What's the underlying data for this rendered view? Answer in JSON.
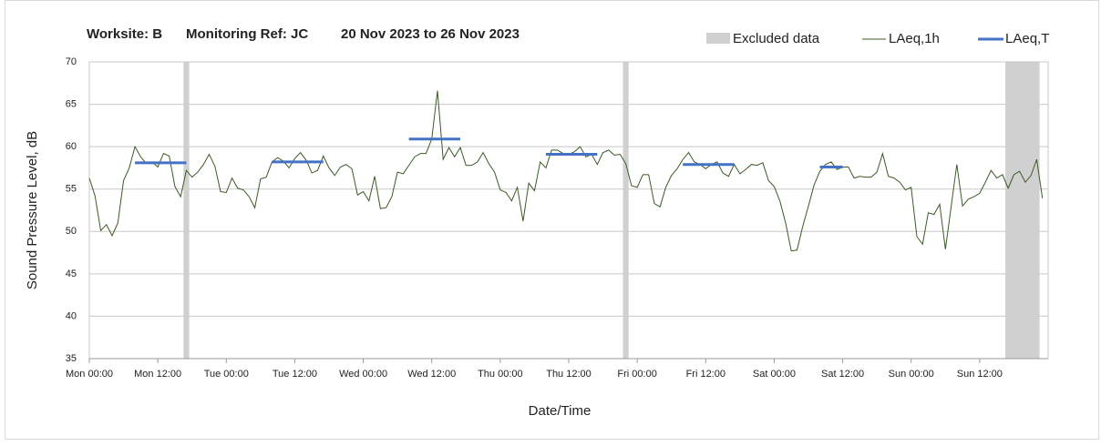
{
  "chart_data": {
    "type": "line",
    "title_parts": [
      "Worksite: B",
      "Monitoring Ref: JC",
      "20 Nov 2023 to 26 Nov 2023"
    ],
    "x_label": "Date/Time",
    "y_label": "Sound Pressure Level, dB",
    "xlim": [
      0,
      168
    ],
    "ylim": [
      35,
      70
    ],
    "yticks": [
      35,
      40,
      45,
      50,
      55,
      60,
      65,
      70
    ],
    "xticks": [
      {
        "value": 0,
        "label": "Mon 00:00"
      },
      {
        "value": 12,
        "label": "Mon 12:00"
      },
      {
        "value": 24,
        "label": "Tue 00:00"
      },
      {
        "value": 36,
        "label": "Tue 12:00"
      },
      {
        "value": 48,
        "label": "Wed 00:00"
      },
      {
        "value": 60,
        "label": "Wed 12:00"
      },
      {
        "value": 72,
        "label": "Thu 00:00"
      },
      {
        "value": 84,
        "label": "Thu 12:00"
      },
      {
        "value": 96,
        "label": "Fri 00:00"
      },
      {
        "value": 108,
        "label": "Fri 12:00"
      },
      {
        "value": 120,
        "label": "Sat 00:00"
      },
      {
        "value": 132,
        "label": "Sat 12:00"
      },
      {
        "value": 144,
        "label": "Sun 00:00"
      },
      {
        "value": 156,
        "label": "Sun 12:00"
      }
    ],
    "grid": true,
    "excluded": {
      "name": "Excluded data",
      "color": "#d0d0d0",
      "ranges": [
        [
          16.5,
          17.5
        ],
        [
          93.5,
          94.5
        ],
        [
          160.5,
          166.5
        ]
      ]
    },
    "series": [
      {
        "name": "LAeq,1h",
        "color": "#3b5a26",
        "x": [
          0,
          1,
          2,
          3,
          4,
          5,
          6,
          7,
          8,
          9,
          10,
          11,
          12,
          13,
          14,
          15,
          16,
          17,
          18,
          19,
          20,
          21,
          22,
          23,
          24,
          25,
          26,
          27,
          28,
          29,
          30,
          31,
          32,
          33,
          34,
          35,
          36,
          37,
          38,
          39,
          40,
          41,
          42,
          43,
          44,
          45,
          46,
          47,
          48,
          49,
          50,
          51,
          52,
          53,
          54,
          55,
          56,
          57,
          58,
          59,
          60,
          61,
          62,
          63,
          64,
          65,
          66,
          67,
          68,
          69,
          70,
          71,
          72,
          73,
          74,
          75,
          76,
          77,
          78,
          79,
          80,
          81,
          82,
          83,
          84,
          85,
          86,
          87,
          88,
          89,
          90,
          91,
          92,
          93,
          94,
          95,
          96,
          97,
          98,
          99,
          100,
          101,
          102,
          103,
          104,
          105,
          106,
          107,
          108,
          109,
          110,
          111,
          112,
          113,
          114,
          115,
          116,
          117,
          118,
          119,
          120,
          121,
          122,
          123,
          124,
          125,
          126,
          127,
          128,
          129,
          130,
          131,
          132,
          133,
          134,
          135,
          136,
          137,
          138,
          139,
          140,
          141,
          142,
          143,
          144,
          145,
          146,
          147,
          148,
          149,
          150,
          151,
          152,
          153,
          154,
          155,
          156,
          157,
          158,
          159,
          160,
          161,
          162,
          163,
          164,
          165,
          166,
          167
        ],
        "values": [
          56.3,
          54.2,
          50.1,
          50.8,
          49.5,
          51,
          56,
          57.5,
          60,
          58.8,
          58,
          58.2,
          57.6,
          59.2,
          58.9,
          55.3,
          54.1,
          57.2,
          56.4,
          57,
          57.9,
          59.1,
          57.7,
          54.7,
          54.6,
          56.3,
          55.1,
          54.9,
          54.1,
          52.8,
          56.2,
          56.4,
          58.2,
          58.7,
          58.3,
          57.5,
          58.6,
          59.3,
          58.4,
          56.9,
          57.2,
          58.9,
          57.5,
          56.6,
          57.6,
          57.9,
          57.4,
          54.3,
          54.7,
          53.6,
          56.5,
          52.7,
          52.8,
          54.1,
          57,
          56.8,
          57.8,
          58.8,
          59.2,
          59.2,
          60.9,
          66.6,
          58.5,
          59.9,
          58.8,
          59.9,
          57.8,
          57.8,
          58.2,
          59.3,
          58,
          57,
          54.9,
          54.6,
          53.6,
          55.2,
          51.2,
          55.7,
          54.8,
          58.2,
          57.5,
          59.6,
          59.6,
          59.2,
          59.1,
          59.4,
          60,
          58.8,
          59.1,
          57.9,
          59.3,
          59.6,
          59,
          59.1,
          58,
          55.4,
          55.2,
          56.7,
          56.7,
          53.3,
          52.9,
          55.2,
          56.6,
          57.4,
          58.5,
          59.3,
          58.2,
          57.9,
          57.4,
          57.9,
          58.2,
          56.9,
          56.5,
          57.9,
          56.8,
          57.3,
          57.9,
          57.8,
          58.1,
          56,
          55.3,
          53.6,
          51,
          47.7,
          47.8,
          50.6,
          53,
          55.5,
          57.1,
          57.9,
          58.2,
          57.3,
          57.6,
          57.6,
          56.3,
          56.5,
          56.4,
          56.4,
          57,
          59.2,
          56.5,
          56.3,
          55.8,
          54.9,
          55.2,
          49.4,
          48.5,
          52.2,
          52,
          53.2,
          47.9,
          52.9,
          57.9,
          53,
          53.8,
          54.1,
          54.5,
          55.8,
          57.2,
          56.3,
          56.7,
          55.1,
          56.7,
          57.1,
          55.8,
          56.6,
          58.5,
          53.9
        ]
      },
      {
        "name": "LAeq,T",
        "color": "#4472c4",
        "segments": [
          {
            "start": 8,
            "end": 17,
            "value": 58.1
          },
          {
            "start": 32,
            "end": 41,
            "value": 58.2
          },
          {
            "start": 56,
            "end": 65,
            "value": 60.9
          },
          {
            "start": 80,
            "end": 89,
            "value": 59.1
          },
          {
            "start": 104,
            "end": 113,
            "value": 57.9
          },
          {
            "start": 128,
            "end": 132,
            "value": 57.6
          }
        ]
      }
    ]
  }
}
